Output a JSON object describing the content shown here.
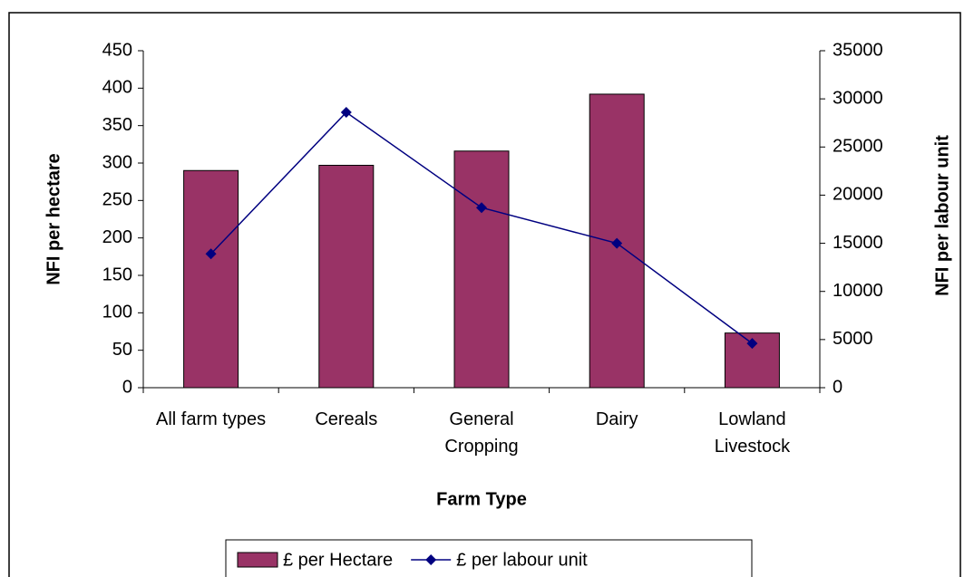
{
  "chart_data": {
    "type": "bar_line",
    "categories": [
      "All farm types",
      "Cereals",
      "General Cropping",
      "Dairy",
      "Lowland Livestock"
    ],
    "series": [
      {
        "name": "£ per Hectare",
        "color": "#993366",
        "type": "bar",
        "values": [
          290,
          297,
          316,
          392,
          73
        ]
      },
      {
        "name": "£ per labour unit",
        "color": "#000080",
        "type": "line",
        "axis": "y2",
        "values": [
          13900,
          28600,
          18700,
          15000,
          4600
        ]
      }
    ],
    "xlabel": "Farm Type",
    "ylabel": "NFI per hectare",
    "y2label": "NFI per labour unit",
    "ylim": [
      0,
      450
    ],
    "yticks": [
      0,
      50,
      100,
      150,
      200,
      250,
      300,
      350,
      400,
      450
    ],
    "y2lim": [
      0,
      35000
    ],
    "y2ticks": [
      0,
      5000,
      10000,
      15000,
      20000,
      25000,
      30000,
      35000
    ],
    "legend": "bottom"
  }
}
